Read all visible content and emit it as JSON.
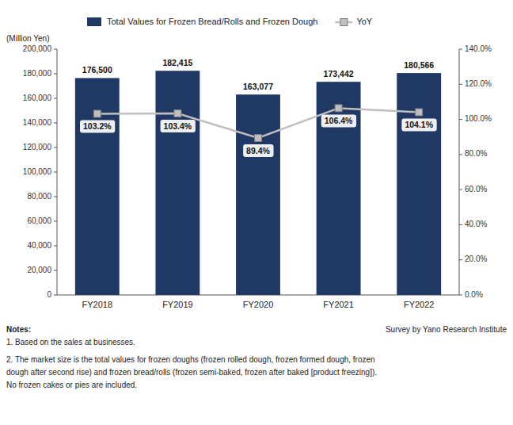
{
  "chart_data": {
    "type": "bar",
    "categories": [
      "FY2018",
      "FY2019",
      "FY2020",
      "FY2021",
      "FY2022"
    ],
    "series": [
      {
        "name": "Total Values for Frozen Bread/Rolls and Frozen Dough",
        "type": "bar",
        "color": "#1F3864",
        "values": [
          176500,
          182415,
          163077,
          173442,
          180566
        ],
        "value_labels": [
          "176,500",
          "182,415",
          "163,077",
          "173,442",
          "180,566"
        ]
      },
      {
        "name": "YoY",
        "type": "line",
        "axis": "y2",
        "color": "#BFBFBF",
        "marker": "square",
        "values": [
          103.2,
          103.4,
          89.4,
          106.4,
          104.1
        ],
        "value_labels": [
          "103.2%",
          "103.4%",
          "89.4%",
          "106.4%",
          "104.1%"
        ]
      }
    ],
    "y_label": "(Million Yen)",
    "ylim": [
      0,
      200000
    ],
    "yticks": [
      0,
      {
        "value": 20000,
        "label": "20,000"
      },
      {
        "value": 40000,
        "label": "40,000"
      },
      {
        "value": 60000,
        "label": "60,000"
      },
      {
        "value": 80000,
        "label": "80,000"
      },
      {
        "value": 100000,
        "label": "100,000"
      },
      {
        "value": 120000,
        "label": "120,000"
      },
      {
        "value": 140000,
        "label": "140,000"
      },
      {
        "value": 160000,
        "label": "160,000"
      },
      {
        "value": 180000,
        "label": "180,000"
      },
      {
        "value": 200000,
        "label": "200,000"
      }
    ],
    "y2lim": [
      0.0,
      140.0
    ],
    "y2ticks": [
      {
        "value": 0.0,
        "label": "0.0%"
      },
      {
        "value": 20.0,
        "label": "20.0%"
      },
      {
        "value": 40.0,
        "label": "40.0%"
      },
      {
        "value": 60.0,
        "label": "60.0%"
      },
      {
        "value": 80.0,
        "label": "80.0%"
      },
      {
        "value": 100.0,
        "label": "100.0%"
      },
      {
        "value": 120.0,
        "label": "120.0%"
      },
      {
        "value": 140.0,
        "label": "140.0%"
      }
    ],
    "grid": false,
    "legend": "top",
    "data_labels": true,
    "annotations": [
      "Notes:",
      "1. Based on the sales at businesses.",
      "2. The market size is the total values for frozen doughs (frozen rolled dough, frozen formed dough, frozen",
      "dough after second rise) and frozen bread/rolls (frozen semi-baked, frozen after baked [product freezing]).",
      "No frozen cakes or pies are included."
    ],
    "source": "Survey by Yano Research Institute"
  }
}
